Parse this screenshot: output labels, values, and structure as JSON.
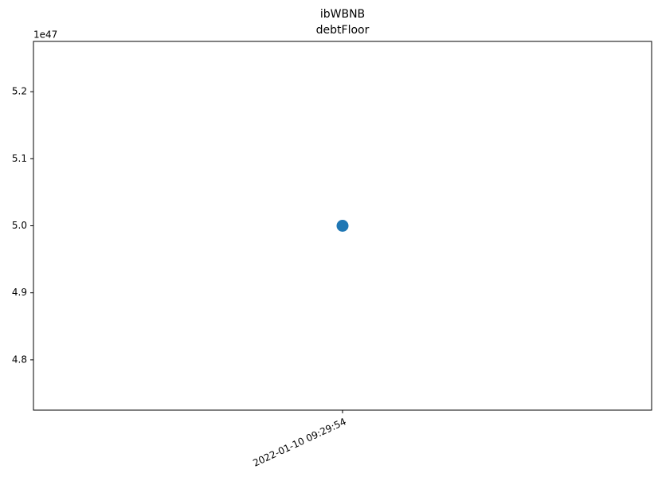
{
  "chart_data": {
    "type": "scatter",
    "title": "ibWBNB",
    "subtitle": "debtFloor",
    "y_offset_label": "1e47",
    "categories": [
      "2022-01-10 09:29:54"
    ],
    "series": [
      {
        "color": "#1f77b4",
        "values": [
          5.0
        ]
      }
    ],
    "ylim": [
      4.725,
      5.275
    ],
    "yticks": [
      4.8,
      4.9,
      {
        "value": 5.0,
        "label": "5.0"
      },
      5.1,
      5.2
    ]
  }
}
